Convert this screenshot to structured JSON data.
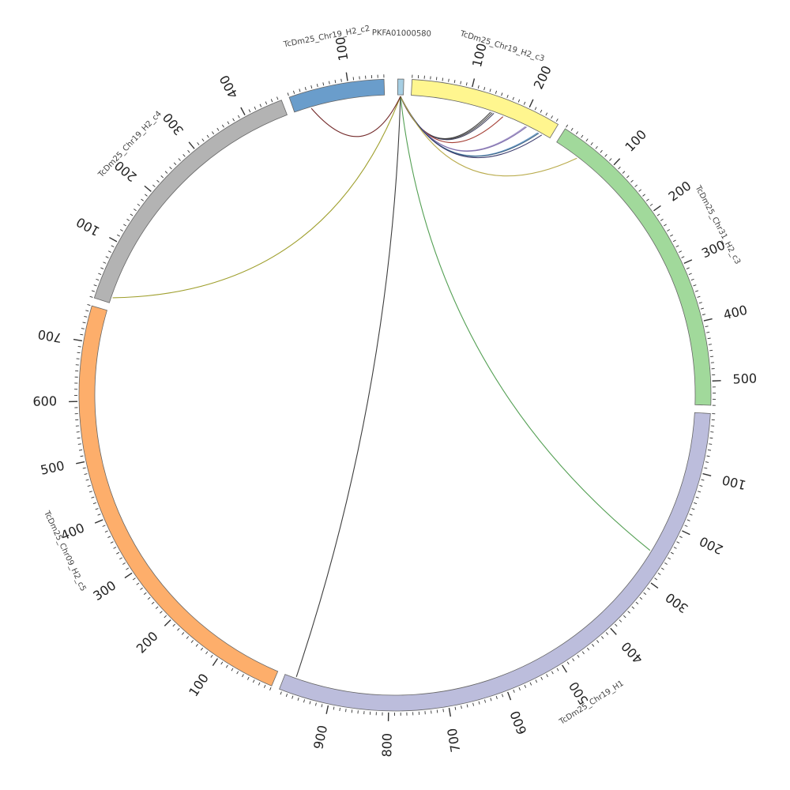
{
  "chart_data": {
    "type": "chord",
    "title": "",
    "segments": [
      {
        "name": "PKFA01000580",
        "length": 10,
        "color": "#a6cee3",
        "label_ticks": []
      },
      {
        "name": "TcDm25_Chr19_H2_c3",
        "length": 255,
        "color": "#fff68f",
        "label_ticks": [
          100,
          200
        ]
      },
      {
        "name": "TcDm25_Chr31_H2_c3",
        "length": 540,
        "color": "#a1d99b",
        "label_ticks": [
          100,
          200,
          300,
          400,
          500
        ]
      },
      {
        "name": "TcDm25_Chr19_H1",
        "length": 985,
        "color": "#bcbddc",
        "label_ticks": [
          100,
          200,
          300,
          400,
          500,
          600,
          700,
          800,
          900
        ]
      },
      {
        "name": "TcDm25_Chr09_H2_c5",
        "length": 760,
        "color": "#fdae6b",
        "label_ticks": [
          100,
          200,
          300,
          400,
          500,
          600,
          700
        ]
      },
      {
        "name": "TcDm25_Chr19_H2_c4",
        "length": 465,
        "color": "#b3b3b3",
        "label_ticks": [
          100,
          200,
          300,
          400
        ]
      },
      {
        "name": "TcDm25_Chr19_H2_c2",
        "length": 160,
        "color": "#6a9dcb",
        "label_ticks": [
          100
        ]
      }
    ],
    "links": [
      {
        "from": "PKFA01000580",
        "from_pos": 5,
        "to": "TcDm25_Chr19_H2_c3",
        "to_pos": 142,
        "color": "#333333"
      },
      {
        "from": "PKFA01000580",
        "from_pos": 5,
        "to": "TcDm25_Chr19_H2_c3",
        "to_pos": 145,
        "color": "#444444"
      },
      {
        "from": "PKFA01000580",
        "from_pos": 5,
        "to": "TcDm25_Chr19_H2_c3",
        "to_pos": 148,
        "color": "#3c3c5a"
      },
      {
        "from": "PKFA01000580",
        "from_pos": 5,
        "to": "TcDm25_Chr19_H2_c3",
        "to_pos": 165,
        "color": "#a0352a"
      },
      {
        "from": "PKFA01000580",
        "from_pos": 5,
        "to": "TcDm25_Chr19_H2_c3",
        "to_pos": 208,
        "color": "#9a89c4"
      },
      {
        "from": "PKFA01000580",
        "from_pos": 5,
        "to": "TcDm25_Chr19_H2_c3",
        "to_pos": 210,
        "color": "#7a6aa8"
      },
      {
        "from": "PKFA01000580",
        "from_pos": 5,
        "to": "TcDm25_Chr19_H2_c3",
        "to_pos": 232,
        "color": "#5b8fc0"
      },
      {
        "from": "PKFA01000580",
        "from_pos": 5,
        "to": "TcDm25_Chr19_H2_c3",
        "to_pos": 234,
        "color": "#355c7d"
      },
      {
        "from": "PKFA01000580",
        "from_pos": 5,
        "to": "TcDm25_Chr19_H2_c3",
        "to_pos": 240,
        "color": "#333366"
      },
      {
        "from": "PKFA01000580",
        "from_pos": 5,
        "to": "TcDm25_Chr31_H2_c3",
        "to_pos": 45,
        "color": "#b5a642"
      },
      {
        "from": "PKFA01000580",
        "from_pos": 5,
        "to": "TcDm25_Chr19_H1",
        "to_pos": 255,
        "color": "#4a9a4a"
      },
      {
        "from": "PKFA01000580",
        "from_pos": 5,
        "to": "TcDm25_Chr19_H1",
        "to_pos": 965,
        "color": "#333333"
      },
      {
        "from": "PKFA01000580",
        "from_pos": 5,
        "to": "TcDm25_Chr19_H2_c4",
        "to_pos": 10,
        "color": "#9a9a22"
      },
      {
        "from": "PKFA01000580",
        "from_pos": 5,
        "to": "TcDm25_Chr19_H2_c2",
        "to_pos": 30,
        "color": "#6b1f1f"
      }
    ]
  }
}
